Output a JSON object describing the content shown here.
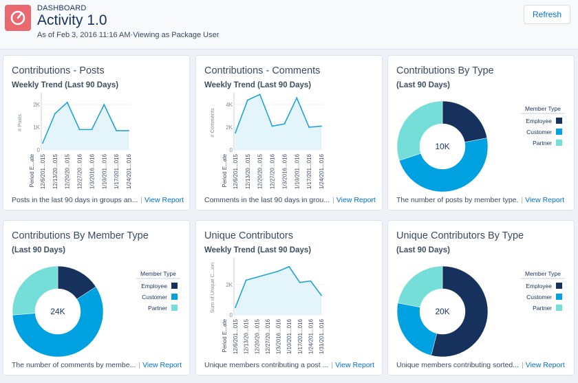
{
  "header": {
    "label": "DASHBOARD",
    "title": "Activity 1.0",
    "subtitle": "As of Feb 3, 2016 11:16 AM·Viewing as Package User",
    "refresh_label": "Refresh"
  },
  "colors": {
    "accent": "#0070d2",
    "line": "#1fa3d1",
    "area": "#e3f4fb",
    "employee": "#16325c",
    "customer": "#00a1e0",
    "partner": "#76ded9",
    "icon_bg": "#e9696e"
  },
  "cards": [
    {
      "title": "Contributions - Posts",
      "subtitle": "Weekly Trend (Last 90 Days)",
      "footer_text": "Posts in the last 90 days in groups an...",
      "link_label": "View Report",
      "chart_data": {
        "type": "area",
        "ylabel": "# Posts",
        "xlabel": "Period E...ate",
        "yticks": [
          "2K",
          "1K",
          "0"
        ],
        "ylim": [
          0,
          2400
        ],
        "categories": [
          "12/6/201...015",
          "12/13/20...015",
          "12/20/20...015",
          "12/27/20...016",
          "1/3/2016...016",
          "1/10/201...016",
          "1/17/201...016",
          "1/24/201...016"
        ],
        "values": [
          300,
          1600,
          2100,
          900,
          900,
          2000,
          850,
          850
        ]
      }
    },
    {
      "title": "Contributions - Comments",
      "subtitle": "Weekly Trend (Last 90 Days)",
      "footer_text": "Comments in the last 90 days in grou...",
      "link_label": "View Report",
      "chart_data": {
        "type": "area",
        "ylabel": "# Comments",
        "xlabel": "Period E...ate",
        "yticks": [
          "4K",
          "2K",
          "0"
        ],
        "ylim": [
          0,
          4800
        ],
        "categories": [
          "12/6/201...015",
          "12/13/20...015",
          "12/20/20...015",
          "12/27/20...016",
          "1/3/2016...016",
          "1/10/201...016",
          "1/17/201...016",
          "1/24/201...016"
        ],
        "values": [
          1500,
          4400,
          4900,
          2100,
          2300,
          4600,
          2000,
          2100
        ]
      }
    },
    {
      "title": "Contributions By Type",
      "subtitle": "(Last 90 Days)",
      "footer_text": "The number of posts by member type.",
      "link_label": "View Report",
      "chart_data": {
        "type": "pie",
        "center_label": "10K",
        "legend_title": "Member Type",
        "labels": [
          "Employee",
          "Customer",
          "Partner"
        ],
        "values": [
          2200,
          4800,
          3000
        ]
      }
    },
    {
      "title": "Contributions By Member Type",
      "subtitle": "(Last 90 Days)",
      "footer_text": "The number of comments by membe...",
      "link_label": "View Report",
      "chart_data": {
        "type": "pie",
        "center_label": "24K",
        "legend_title": "Member Type",
        "labels": [
          "Employee",
          "Customer",
          "Partner"
        ],
        "values": [
          3800,
          13900,
          6300
        ]
      }
    },
    {
      "title": "Unique Contributors",
      "subtitle": "Weekly Trend (Last 90 Days)",
      "footer_text": "Unique members contributing a post ...",
      "link_label": "View Report",
      "chart_data": {
        "type": "area",
        "ylabel": "Sum of Unique C...ion",
        "xlabel": "Period E...ate",
        "yticks": [
          "2K",
          "0"
        ],
        "ylim": [
          0,
          3600
        ],
        "categories": [
          "12/6/201...015",
          "12/13/20...015",
          "12/20/20...015",
          "12/27/20...016",
          "1/3/2016...016",
          "1/10/201...016",
          "1/17/201...016",
          "1/24/201...016",
          "1/31/201...016"
        ],
        "values": [
          500,
          2300,
          2500,
          2700,
          2900,
          3200,
          2150,
          2250,
          1300
        ]
      }
    },
    {
      "title": "Unique Contributors By Type",
      "subtitle": "(Last 90 Days)",
      "footer_text": "Unique members contributing sorted...",
      "link_label": "View Report",
      "chart_data": {
        "type": "pie",
        "center_label": "20K",
        "legend_title": "Member Type",
        "labels": [
          "Employee",
          "Customer",
          "Partner"
        ],
        "values": [
          10800,
          4800,
          4400
        ]
      }
    }
  ]
}
